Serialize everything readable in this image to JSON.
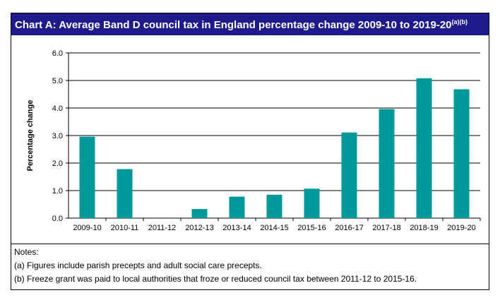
{
  "chart_data": {
    "type": "bar",
    "title": "Chart A: Average Band D council tax in England percentage change 2009-10 to 2019-20",
    "title_superscript": "(a)(b)",
    "y_label": "Percentage change",
    "categories": [
      "2009-10",
      "2010-11",
      "2011-12",
      "2012-13",
      "2013-14",
      "2014-15",
      "2015-16",
      "2016-17",
      "2017-18",
      "2018-19",
      "2019-20"
    ],
    "values": [
      2.96,
      1.78,
      0.0,
      0.33,
      0.78,
      0.85,
      1.07,
      3.11,
      3.96,
      5.08,
      4.68
    ],
    "color": "#009999",
    "ylim": [
      0,
      6
    ],
    "yticks": [
      {
        "value": 0,
        "label": "0.0"
      },
      {
        "value": 1,
        "label": "1.0"
      },
      {
        "value": 2,
        "label": "2.0"
      },
      {
        "value": 3,
        "label": "3.0"
      },
      {
        "value": 4,
        "label": "4.0"
      },
      {
        "value": 5,
        "label": "5.0"
      },
      {
        "value": 6,
        "label": "6.0"
      }
    ],
    "grid": true,
    "notes": [
      "Notes:",
      "(a) Figures include parish precepts and adult social care precepts.",
      "(b) Freeze grant was paid to local authorities that froze or reduced council tax between 2011-12 to 2015-16."
    ]
  }
}
